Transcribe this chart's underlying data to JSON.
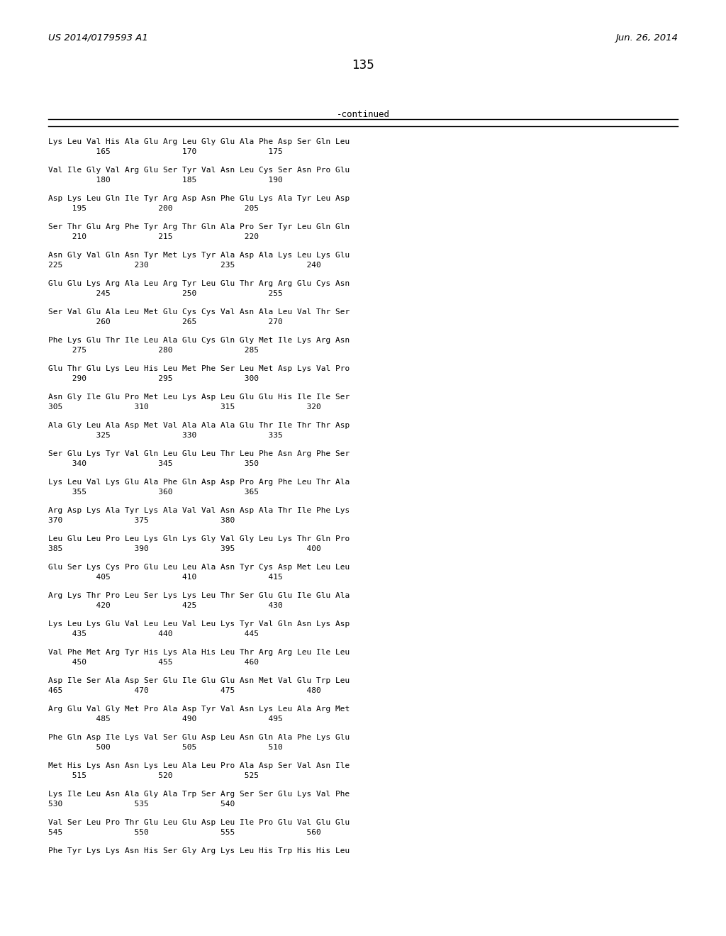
{
  "patent_left": "US 2014/0179593 A1",
  "patent_right": "Jun. 26, 2014",
  "page_number": "135",
  "continued_label": "-continued",
  "background_color": "#ffffff",
  "text_color": "#000000",
  "seq_lines": [
    [
      "Lys Leu Val His Ala Glu Arg Leu Gly Glu Ala Phe Asp Ser Gln Leu",
      "          165               170               175"
    ],
    [
      "Val Ile Gly Val Arg Glu Ser Tyr Val Asn Leu Cys Ser Asn Pro Glu",
      "          180               185               190"
    ],
    [
      "Asp Lys Leu Gln Ile Tyr Arg Asp Asn Phe Glu Lys Ala Tyr Leu Asp",
      "     195               200               205"
    ],
    [
      "Ser Thr Glu Arg Phe Tyr Arg Thr Gln Ala Pro Ser Tyr Leu Gln Gln",
      "     210               215               220"
    ],
    [
      "Asn Gly Val Gln Asn Tyr Met Lys Tyr Ala Asp Ala Lys Leu Lys Glu",
      "225               230               235               240"
    ],
    [
      "Glu Glu Lys Arg Ala Leu Arg Tyr Leu Glu Thr Arg Arg Glu Cys Asn",
      "          245               250               255"
    ],
    [
      "Ser Val Glu Ala Leu Met Glu Cys Cys Val Asn Ala Leu Val Thr Ser",
      "          260               265               270"
    ],
    [
      "Phe Lys Glu Thr Ile Leu Ala Glu Cys Gln Gly Met Ile Lys Arg Asn",
      "     275               280               285"
    ],
    [
      "Glu Thr Glu Lys Leu His Leu Met Phe Ser Leu Met Asp Lys Val Pro",
      "     290               295               300"
    ],
    [
      "Asn Gly Ile Glu Pro Met Leu Lys Asp Leu Glu Glu His Ile Ile Ser",
      "305               310               315               320"
    ],
    [
      "Ala Gly Leu Ala Asp Met Val Ala Ala Ala Glu Thr Ile Thr Thr Asp",
      "          325               330               335"
    ],
    [
      "Ser Glu Lys Tyr Val Gln Leu Glu Leu Thr Leu Phe Asn Arg Phe Ser",
      "     340               345               350"
    ],
    [
      "Lys Leu Val Lys Glu Ala Phe Gln Asp Asp Pro Arg Phe Leu Thr Ala",
      "     355               360               365"
    ],
    [
      "Arg Asp Lys Ala Tyr Lys Ala Val Val Asn Asp Ala Thr Ile Phe Lys",
      "370               375               380"
    ],
    [
      "Leu Glu Leu Pro Leu Lys Gln Lys Gly Val Gly Leu Lys Thr Gln Pro",
      "385               390               395               400"
    ],
    [
      "Glu Ser Lys Cys Pro Glu Leu Leu Ala Asn Tyr Cys Asp Met Leu Leu",
      "          405               410               415"
    ],
    [
      "Arg Lys Thr Pro Leu Ser Lys Lys Leu Thr Ser Glu Glu Ile Glu Ala",
      "          420               425               430"
    ],
    [
      "Lys Leu Lys Glu Val Leu Leu Val Leu Lys Tyr Val Gln Asn Lys Asp",
      "     435               440               445"
    ],
    [
      "Val Phe Met Arg Tyr His Lys Ala His Leu Thr Arg Arg Leu Ile Leu",
      "     450               455               460"
    ],
    [
      "Asp Ile Ser Ala Asp Ser Glu Ile Glu Glu Asn Met Val Glu Trp Leu",
      "465               470               475               480"
    ],
    [
      "Arg Glu Val Gly Met Pro Ala Asp Tyr Val Asn Lys Leu Ala Arg Met",
      "          485               490               495"
    ],
    [
      "Phe Gln Asp Ile Lys Val Ser Glu Asp Leu Asn Gln Ala Phe Lys Glu",
      "          500               505               510"
    ],
    [
      "Met His Lys Asn Asn Lys Leu Ala Leu Pro Ala Asp Ser Val Asn Ile",
      "     515               520               525"
    ],
    [
      "Lys Ile Leu Asn Ala Gly Ala Trp Ser Arg Ser Ser Glu Lys Val Phe",
      "530               535               540"
    ],
    [
      "Val Ser Leu Pro Thr Glu Leu Glu Asp Leu Ile Pro Glu Val Glu Glu",
      "545               550               555               560"
    ],
    [
      "Phe Tyr Lys Lys Asn His Ser Gly Arg Lys Leu His Trp His His Leu",
      ""
    ]
  ]
}
